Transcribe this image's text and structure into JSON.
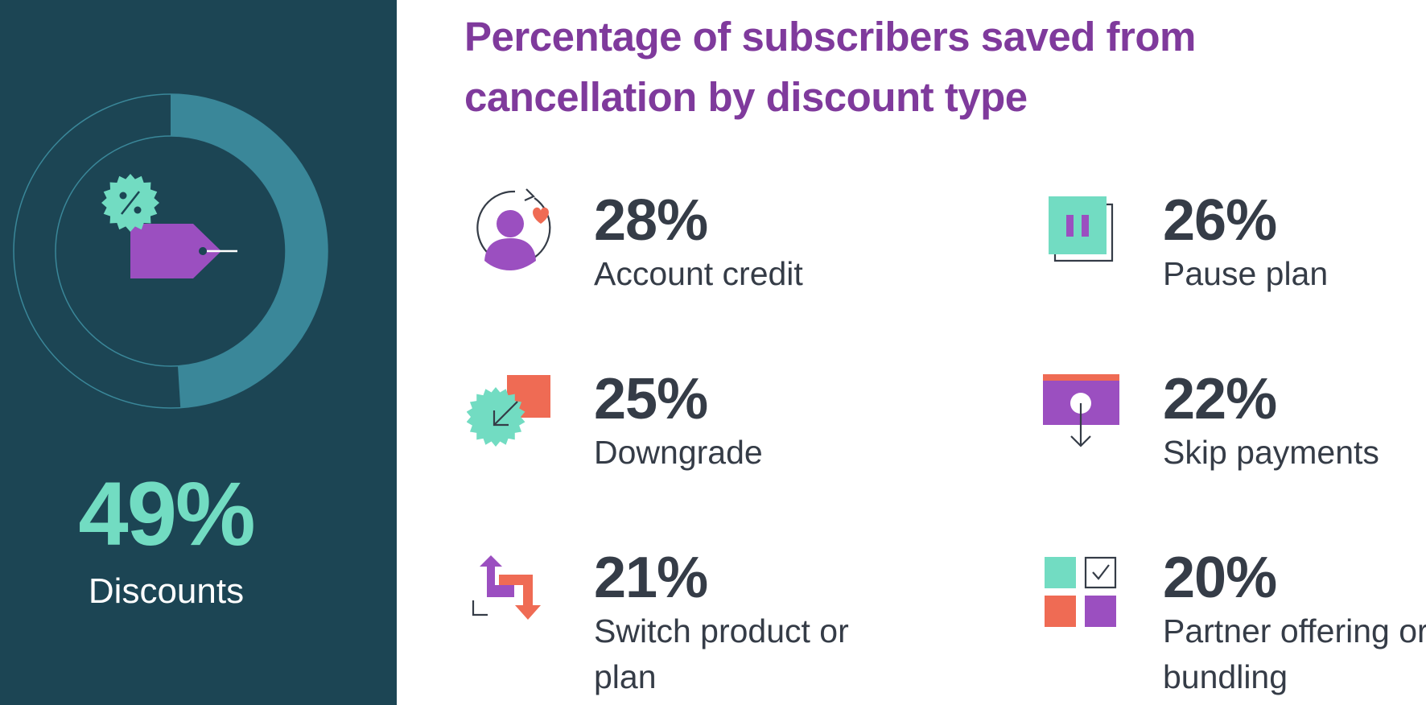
{
  "title": "Percentage of subscribers saved from cancellation by discount type",
  "highlight": {
    "value": "49%",
    "label": "Discounts",
    "fraction": 0.49
  },
  "colors": {
    "panel": "#1c4554",
    "teal": "#72dcc2",
    "purple": "#9b4fc0",
    "coral": "#ef6b54",
    "title": "#7f3a9c",
    "text": "#353c47",
    "ring": "#3a8799"
  },
  "stats": [
    {
      "value": "28%",
      "label": "Account credit",
      "icon": "account-credit-icon"
    },
    {
      "value": "26%",
      "label": "Pause plan",
      "icon": "pause-plan-icon"
    },
    {
      "value": "25%",
      "label": "Downgrade",
      "icon": "downgrade-icon"
    },
    {
      "value": "22%",
      "label": "Skip payments",
      "icon": "skip-payments-icon"
    },
    {
      "value": "21%",
      "label": "Switch product or plan",
      "icon": "switch-product-icon"
    },
    {
      "value": "20%",
      "label": "Partner offering or bundling",
      "icon": "partner-offering-icon"
    }
  ],
  "chart_data": [
    {
      "type": "pie",
      "categories": [
        "Discounts"
      ],
      "values": [
        49
      ]
    },
    {
      "type": "table",
      "categories": [
        "Account credit",
        "Pause plan",
        "Downgrade",
        "Skip payments",
        "Switch product or plan",
        "Partner offering or bundling"
      ],
      "values": [
        28,
        26,
        25,
        22,
        21,
        20
      ]
    }
  ]
}
